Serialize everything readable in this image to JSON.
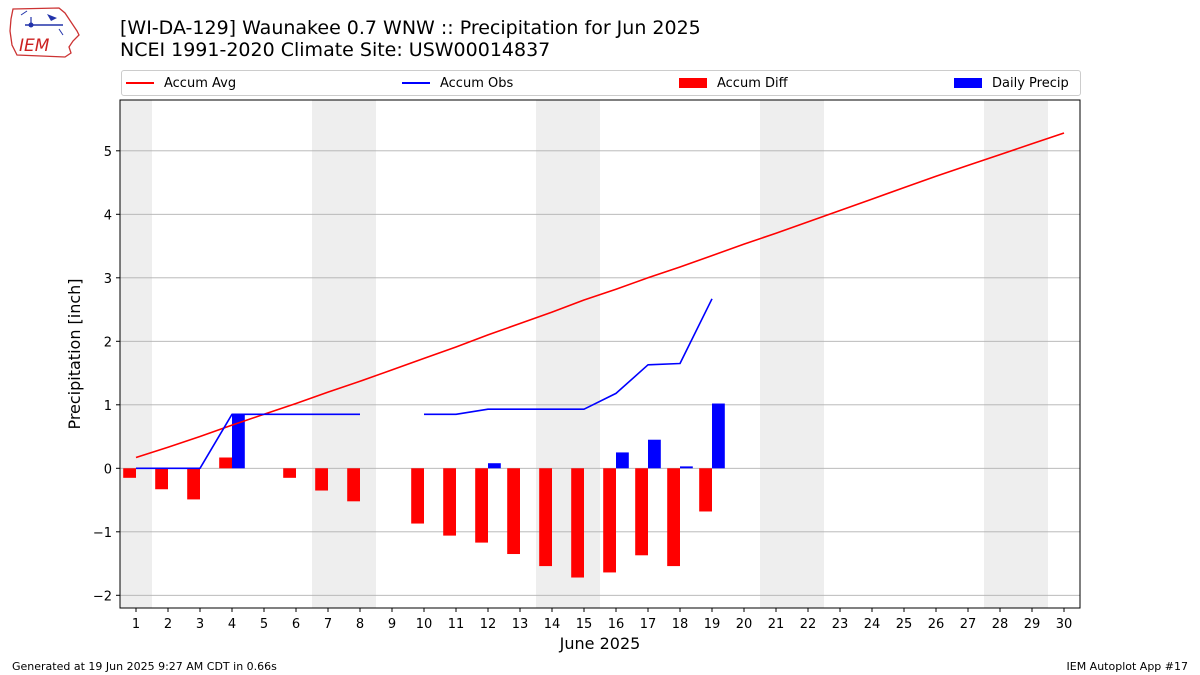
{
  "title_line1": "[WI-DA-129] Waunakee 0.7 WNW :: Precipitation for Jun 2025",
  "title_line2": "NCEI 1991-2020 Climate Site: USW00014837",
  "logo_text": "IEM",
  "footer_left": "Generated at 19 Jun 2025 9:27 AM CDT in 0.66s",
  "footer_right": "IEM Autoplot App #17",
  "chart_data": {
    "type": "bar",
    "xlabel": "June 2025",
    "ylabel": "Precipitation [inch]",
    "xlim": [
      0.5,
      30.5
    ],
    "ylim": [
      -2.2,
      5.8
    ],
    "yticks": [
      -2,
      -1,
      0,
      1,
      2,
      3,
      4,
      5
    ],
    "ytick_labels": [
      "−2",
      "−1",
      "0",
      "1",
      "2",
      "3",
      "4",
      "5"
    ],
    "days": [
      1,
      2,
      3,
      4,
      5,
      6,
      7,
      8,
      9,
      10,
      11,
      12,
      13,
      14,
      15,
      16,
      17,
      18,
      19,
      20,
      21,
      22,
      23,
      24,
      25,
      26,
      27,
      28,
      29,
      30
    ],
    "weekend_shading": [
      [
        0.5,
        1.5
      ],
      [
        6.5,
        8.5
      ],
      [
        13.5,
        15.5
      ],
      [
        20.5,
        22.5
      ],
      [
        27.5,
        29.5
      ]
    ],
    "grid": "y",
    "legend": [
      {
        "label": "Accum Avg",
        "kind": "line",
        "color": "#ff0000"
      },
      {
        "label": "Accum Obs",
        "kind": "line",
        "color": "#0000ff"
      },
      {
        "label": "Accum Diff",
        "kind": "bar",
        "color": "#ff0000"
      },
      {
        "label": "Daily Precip",
        "kind": "bar",
        "color": "#0000ff"
      }
    ],
    "series": [
      {
        "name": "Accum Avg",
        "kind": "line",
        "color": "#ff0000",
        "values": [
          0.17,
          0.33,
          0.5,
          0.68,
          0.85,
          1.02,
          1.2,
          1.37,
          1.55,
          1.73,
          1.91,
          2.1,
          2.28,
          2.46,
          2.65,
          2.82,
          3.0,
          3.17,
          3.35,
          3.53,
          3.7,
          3.88,
          4.06,
          4.24,
          4.42,
          4.6,
          4.77,
          4.94,
          5.11,
          5.28
        ]
      },
      {
        "name": "Accum Obs",
        "kind": "line",
        "color": "#0000ff",
        "values": [
          0.0,
          0.0,
          0.0,
          0.85,
          0.85,
          0.85,
          0.85,
          0.85,
          null,
          0.85,
          0.85,
          0.93,
          0.93,
          0.93,
          0.93,
          1.18,
          1.63,
          1.65,
          2.67,
          null,
          null,
          null,
          null,
          null,
          null,
          null,
          null,
          null,
          null,
          null
        ]
      },
      {
        "name": "Accum Diff",
        "kind": "bar",
        "color": "#ff0000",
        "values": [
          -0.15,
          -0.33,
          -0.49,
          0.17,
          0.0,
          -0.15,
          -0.35,
          -0.52,
          null,
          -0.87,
          -1.06,
          -1.17,
          -1.35,
          -1.54,
          -1.72,
          -1.64,
          -1.37,
          -1.54,
          -0.68,
          null,
          null,
          null,
          null,
          null,
          null,
          null,
          null,
          null,
          null,
          null
        ]
      },
      {
        "name": "Daily Precip",
        "kind": "bar",
        "color": "#0000ff",
        "values": [
          0.0,
          0.0,
          0.0,
          0.85,
          0.0,
          0.0,
          0.0,
          0.0,
          null,
          0.0,
          0.0,
          0.08,
          0.0,
          0.0,
          0.0,
          0.25,
          0.45,
          0.03,
          1.02,
          null,
          null,
          null,
          null,
          null,
          null,
          null,
          null,
          null,
          null,
          null
        ]
      }
    ]
  }
}
